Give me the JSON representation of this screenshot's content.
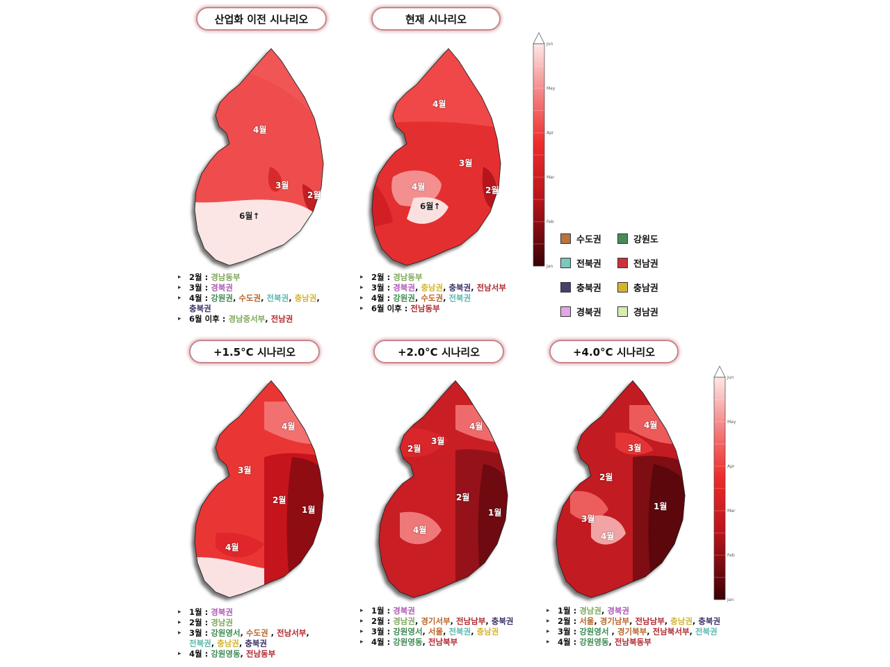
{
  "scenarios": [
    {
      "title": "산업화 이전 시나리오",
      "labels": [
        "4월",
        "3월",
        "2월",
        "6월↑"
      ]
    },
    {
      "title": "현재 시나리오",
      "labels": [
        "4월",
        "3월",
        "4월",
        "2월",
        "6월↑"
      ]
    },
    {
      "title": "+1.5°C 시나리오",
      "labels": [
        "4월",
        "3월",
        "2월",
        "1월",
        "4월"
      ]
    },
    {
      "title": "+2.0°C 시나리오",
      "labels": [
        "4월",
        "2월",
        "3월",
        "2월",
        "1월",
        "4월"
      ]
    },
    {
      "title": "+4.0°C 시나리오",
      "labels": [
        "4월",
        "3월",
        "2월",
        "1월",
        "3월",
        "4월"
      ]
    }
  ],
  "colorbar": {
    "ticks": [
      "Jun",
      "May",
      "Apr",
      "Mar",
      "Feb",
      "Jan"
    ]
  },
  "legend": [
    {
      "name": "수도권",
      "color": "#b8733e"
    },
    {
      "name": "강원도",
      "color": "#4a8a5a"
    },
    {
      "name": "전북권",
      "color": "#7cc8c0"
    },
    {
      "name": "전남권",
      "color": "#c9323b"
    },
    {
      "name": "충북권",
      "color": "#4a3e6e"
    },
    {
      "name": "충남권",
      "color": "#d4b431"
    },
    {
      "name": "경북권",
      "color": "#e4a6e8"
    },
    {
      "name": "경남권",
      "color": "#d6ecb0"
    }
  ],
  "notes": {
    "pre": {
      "r1": {
        "m": "2월",
        "a": "경남동부"
      },
      "r2": {
        "m": "3월",
        "a": "경북권"
      },
      "r3": {
        "m": "4월",
        "a": "강원권",
        "b": "수도권",
        "c": "전북권",
        "d": "충남권",
        "e": "충북권"
      },
      "r4": {
        "m": "6월 이후",
        "a": "경남중서부",
        "b": "전남권"
      }
    },
    "cur": {
      "r1": {
        "m": "2월",
        "a": "경남동부"
      },
      "r2": {
        "m": "3월",
        "a": "경북권",
        "b": "충남권",
        "c": "충북권",
        "d": "전남서부"
      },
      "r3": {
        "m": "4월",
        "a": "강원권",
        "b": "수도권",
        "c": "전북권"
      },
      "r4": {
        "m": "6월 이후",
        "a": "전남동부"
      }
    },
    "p15": {
      "r1": {
        "m": "1월",
        "a": "경북권"
      },
      "r2": {
        "m": "2월",
        "a": "경남권"
      },
      "r3": {
        "m": "3월",
        "a": "강원영서",
        "b": "수도권",
        "c": "전남서부",
        "d": "전북권",
        "e": "충남권",
        "f": "충북권"
      },
      "r4": {
        "m": "4월",
        "a": "강원영동",
        "b": "전남동부"
      }
    },
    "p20": {
      "r1": {
        "m": "1월",
        "a": "경북권"
      },
      "r2": {
        "m": "2월",
        "a": "경남권",
        "b": "경기서부",
        "c": "전남남부",
        "d": "충북권"
      },
      "r3": {
        "m": "3월",
        "a": "강원영서",
        "b": "서울",
        "c": "전북권",
        "d": "충남권"
      },
      "r4": {
        "m": "4월",
        "a": "강원영동",
        "b": "전남북부"
      }
    },
    "p40": {
      "r1": {
        "m": "1월",
        "a": "경남권",
        "b": "경북권"
      },
      "r2": {
        "m": "2월",
        "a": "서울",
        "b": "경기남부",
        "c": "전남남부",
        "d": "충남권",
        "e": "충북권"
      },
      "r3": {
        "m": "3월",
        "a": "강원영서",
        "b": "경기북부",
        "c": "전남북서부",
        "d": "전북권"
      },
      "r4": {
        "m": "4월",
        "a": "강원영동",
        "b": "전남북동부"
      }
    }
  }
}
